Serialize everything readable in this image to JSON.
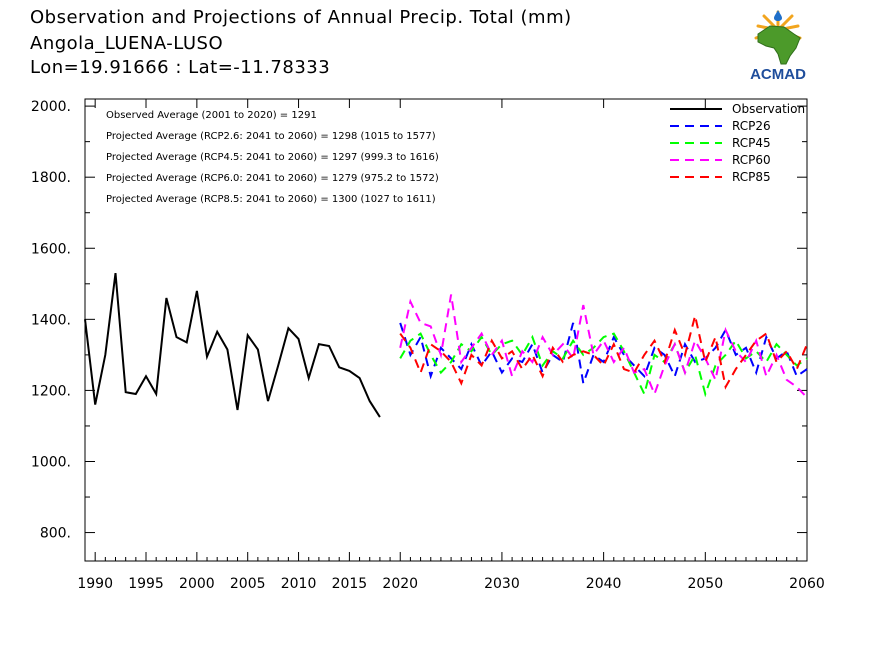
{
  "header": {
    "title": "Observation and Projections of Annual Precip. Total (mm)",
    "location": "Angola_LUENA-LUSO",
    "coords": "Lon=19.91666 : Lat=-11.78333"
  },
  "logo": {
    "text": "ACMAD"
  },
  "annotations": [
    "Observed Average (2001 to 2020) = 1291",
    "Projected Average (RCP2.6: 2041 to 2060) = 1298 (1015 to 1577)",
    "Projected Average (RCP4.5: 2041 to 2060) = 1297 (999.3 to 1616)",
    "Projected Average (RCP6.0: 2041 to 2060) = 1279 (975.2 to 1572)",
    "Projected Average (RCP8.5: 2041 to 2060) = 1300 (1027 to 1611)"
  ],
  "chart_data": {
    "type": "line",
    "title": "Observation and Projections of Annual Precip. Total (mm)",
    "xlabel": "",
    "ylabel": "",
    "xlim": [
      1989,
      2060
    ],
    "ylim": [
      720,
      2020
    ],
    "x_ticks": [
      1990,
      1995,
      2000,
      2005,
      2010,
      2015,
      2020,
      2030,
      2040,
      2050,
      2060
    ],
    "x_tick_labels": [
      "1990",
      "1995",
      "2000",
      "2005",
      "2010",
      "2015",
      "2020",
      "2030",
      "2040",
      "2050",
      "2060"
    ],
    "y_ticks": [
      800,
      1000,
      1200,
      1400,
      1600,
      1800,
      2000
    ],
    "y_tick_labels": [
      "800.",
      "1000.",
      "1200.",
      "1400.",
      "1600.",
      "1800.",
      "2000."
    ],
    "legend_position": "top-right",
    "grid": false,
    "series": [
      {
        "name": "Observation",
        "color": "#000000",
        "style": "solid",
        "x": [
          1989,
          1990,
          1991,
          1992,
          1993,
          1994,
          1995,
          1996,
          1997,
          1998,
          1999,
          2000,
          2001,
          2002,
          2003,
          2004,
          2005,
          2006,
          2007,
          2008,
          2009,
          2010,
          2011,
          2012,
          2013,
          2014,
          2015,
          2016,
          2017,
          2018,
          2019,
          2020
        ],
        "y": [
          1400,
          1160,
          1300,
          1530,
          1195,
          1190,
          1240,
          1190,
          1460,
          1350,
          1335,
          1480,
          1295,
          1365,
          1315,
          1145,
          1355,
          1315,
          1170,
          1270,
          1375,
          1345,
          1235,
          1330,
          1325,
          1265,
          1255,
          1235,
          1170,
          1125,
          null,
          null
        ]
      },
      {
        "name": "RCP26",
        "color": "#0000ff",
        "style": "dashed",
        "x": [
          2020,
          2021,
          2022,
          2023,
          2024,
          2025,
          2026,
          2027,
          2028,
          2029,
          2030,
          2031,
          2032,
          2033,
          2034,
          2035,
          2036,
          2037,
          2038,
          2039,
          2040,
          2041,
          2042,
          2043,
          2044,
          2045,
          2046,
          2047,
          2048,
          2049,
          2050,
          2051,
          2052,
          2053,
          2054,
          2055,
          2056,
          2057,
          2058,
          2059,
          2060
        ],
        "y": [
          1390,
          1300,
          1350,
          1240,
          1320,
          1290,
          1260,
          1330,
          1270,
          1310,
          1250,
          1290,
          1280,
          1330,
          1250,
          1300,
          1280,
          1390,
          1220,
          1300,
          1280,
          1350,
          1300,
          1270,
          1240,
          1320,
          1300,
          1240,
          1330,
          1280,
          1290,
          1320,
          1370,
          1300,
          1320,
          1250,
          1350,
          1290,
          1310,
          1240,
          1260
        ]
      },
      {
        "name": "RCP45",
        "color": "#00ff00",
        "style": "dashed",
        "x": [
          2020,
          2021,
          2022,
          2023,
          2024,
          2025,
          2026,
          2027,
          2028,
          2029,
          2030,
          2031,
          2032,
          2033,
          2034,
          2035,
          2036,
          2037,
          2038,
          2039,
          2040,
          2041,
          2042,
          2043,
          2044,
          2045,
          2046,
          2047,
          2048,
          2049,
          2050,
          2051,
          2052,
          2053,
          2054,
          2055,
          2056,
          2057,
          2058,
          2059,
          2060
        ],
        "y": [
          1290,
          1340,
          1360,
          1300,
          1250,
          1280,
          1330,
          1310,
          1350,
          1300,
          1330,
          1340,
          1300,
          1350,
          1270,
          1310,
          1290,
          1340,
          1300,
          1320,
          1350,
          1360,
          1310,
          1250,
          1190,
          1300,
          1280,
          1330,
          1250,
          1300,
          1190,
          1270,
          1300,
          1340,
          1290,
          1310,
          1280,
          1330,
          1300,
          1270,
          1290
        ]
      },
      {
        "name": "RCP60",
        "color": "#ff00ff",
        "style": "dashed",
        "x": [
          2020,
          2021,
          2022,
          2023,
          2024,
          2025,
          2026,
          2027,
          2028,
          2029,
          2030,
          2031,
          2032,
          2033,
          2034,
          2035,
          2036,
          2037,
          2038,
          2039,
          2040,
          2041,
          2042,
          2043,
          2044,
          2045,
          2046,
          2047,
          2048,
          2049,
          2050,
          2051,
          2052,
          2053,
          2054,
          2055,
          2056,
          2057,
          2058,
          2059,
          2060
        ],
        "y": [
          1320,
          1450,
          1390,
          1380,
          1300,
          1470,
          1280,
          1320,
          1360,
          1300,
          1340,
          1240,
          1310,
          1280,
          1350,
          1300,
          1330,
          1290,
          1440,
          1300,
          1340,
          1280,
          1320,
          1250,
          1260,
          1190,
          1270,
          1330,
          1250,
          1340,
          1290,
          1230,
          1370,
          1310,
          1280,
          1340,
          1240,
          1300,
          1230,
          1210,
          1180
        ]
      },
      {
        "name": "RCP85",
        "color": "#ff0000",
        "style": "dashed",
        "x": [
          2020,
          2021,
          2022,
          2023,
          2024,
          2025,
          2026,
          2027,
          2028,
          2029,
          2030,
          2031,
          2032,
          2033,
          2034,
          2035,
          2036,
          2037,
          2038,
          2039,
          2040,
          2041,
          2042,
          2043,
          2044,
          2045,
          2046,
          2047,
          2048,
          2049,
          2050,
          2051,
          2052,
          2053,
          2054,
          2055,
          2056,
          2057,
          2058,
          2059,
          2060
        ],
        "y": [
          1360,
          1320,
          1250,
          1330,
          1310,
          1280,
          1220,
          1300,
          1270,
          1340,
          1290,
          1310,
          1260,
          1300,
          1240,
          1320,
          1280,
          1300,
          1310,
          1300,
          1270,
          1330,
          1260,
          1250,
          1300,
          1340,
          1280,
          1370,
          1300,
          1410,
          1280,
          1350,
          1210,
          1260,
          1300,
          1340,
          1360,
          1280,
          1310,
          1260,
          1330
        ]
      }
    ]
  }
}
